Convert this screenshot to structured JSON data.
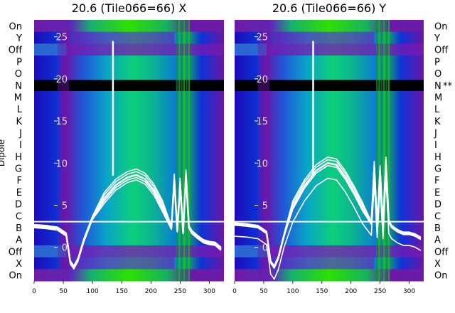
{
  "chart_data": [
    {
      "type": "heatmap",
      "title": "20.6 (Tile066=66) X",
      "side": "left",
      "ylabel": "Dipole",
      "xlim": [
        0,
        325
      ],
      "x_ticks": [
        0,
        50,
        100,
        150,
        200,
        250,
        300
      ],
      "y_overlay_ticks": [
        0,
        5,
        10,
        15,
        20,
        25
      ],
      "y_overlay_range": [
        -4,
        27
      ],
      "row_labels": [
        "On",
        "Y",
        "Off",
        "P",
        "O",
        "N",
        "M",
        "L",
        "K",
        "J",
        "I",
        "H",
        "G",
        "F",
        "E",
        "D",
        "C",
        "B",
        "A",
        "Off",
        "X",
        "On"
      ],
      "flagged_row": "N",
      "flagged_marker": "",
      "spike_x": 135,
      "rfi_band_x": [
        243,
        268
      ],
      "curve_samples": {
        "x": [
          0,
          20,
          40,
          55,
          62,
          68,
          75,
          85,
          100,
          120,
          140,
          160,
          175,
          190,
          205,
          220,
          235,
          240,
          245,
          250,
          255,
          260,
          265,
          270,
          280,
          290,
          300,
          310,
          320
        ],
        "y": [
          2.5,
          2.4,
          2.2,
          1.5,
          -1.8,
          -2.4,
          -1.5,
          0.8,
          3.5,
          5.8,
          7.4,
          8.3,
          8.6,
          8.1,
          6.8,
          4.8,
          2.3,
          8.0,
          2.0,
          7.5,
          1.8,
          8.5,
          2.4,
          1.8,
          1.2,
          0.7,
          0.5,
          0.4,
          -0.2
        ]
      }
    },
    {
      "type": "heatmap",
      "title": "20.6 (Tile066=66) Y",
      "side": "right",
      "ylabel": "",
      "xlim": [
        0,
        325
      ],
      "x_ticks": [
        0,
        50,
        100,
        150,
        200,
        250,
        300
      ],
      "y_overlay_ticks": [
        0,
        5,
        10,
        15,
        20,
        25
      ],
      "y_overlay_range": [
        -4,
        27
      ],
      "row_labels": [
        "On",
        "Y",
        "Off",
        "P",
        "O",
        "N",
        "M",
        "L",
        "K",
        "J",
        "I",
        "H",
        "G",
        "F",
        "E",
        "D",
        "C",
        "B",
        "A",
        "Off",
        "X",
        "On"
      ],
      "flagged_row": "N",
      "flagged_marker": "**",
      "spike_x": 135,
      "rfi_band_x": [
        243,
        268
      ],
      "curve_samples": {
        "x": [
          0,
          20,
          40,
          55,
          62,
          68,
          75,
          85,
          100,
          120,
          140,
          160,
          175,
          190,
          205,
          220,
          235,
          240,
          245,
          250,
          255,
          260,
          265,
          270,
          280,
          290,
          300,
          310,
          320
        ],
        "y": [
          2.7,
          2.6,
          2.4,
          1.7,
          -1.8,
          -2.4,
          -1.3,
          1.4,
          4.8,
          7.3,
          9.1,
          10.0,
          9.8,
          8.4,
          6.6,
          4.6,
          2.8,
          9.5,
          2.5,
          9.0,
          2.4,
          10.0,
          3.0,
          2.4,
          1.9,
          1.6,
          1.6,
          1.4,
          1.0
        ]
      }
    }
  ]
}
